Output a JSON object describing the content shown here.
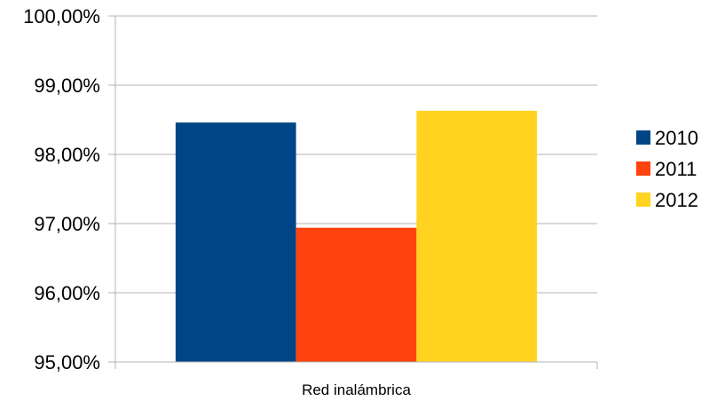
{
  "chart_data": {
    "type": "bar",
    "categories": [
      "Red inalámbrica"
    ],
    "series": [
      {
        "name": "2010",
        "values": [
          98.46
        ],
        "color": "#004586"
      },
      {
        "name": "2011",
        "values": [
          96.94
        ],
        "color": "#ff420e"
      },
      {
        "name": "2012",
        "values": [
          98.63
        ],
        "color": "#ffd320"
      }
    ],
    "ylim": [
      95,
      100
    ],
    "yticks": [
      95,
      96,
      97,
      98,
      99,
      100
    ],
    "ytick_labels": [
      "95,00%",
      "96,00%",
      "97,00%",
      "98,00%",
      "99,00%",
      "100,00%"
    ],
    "title": "",
    "xlabel": "",
    "ylabel": "",
    "grid": "horizontal",
    "legend": "right"
  }
}
